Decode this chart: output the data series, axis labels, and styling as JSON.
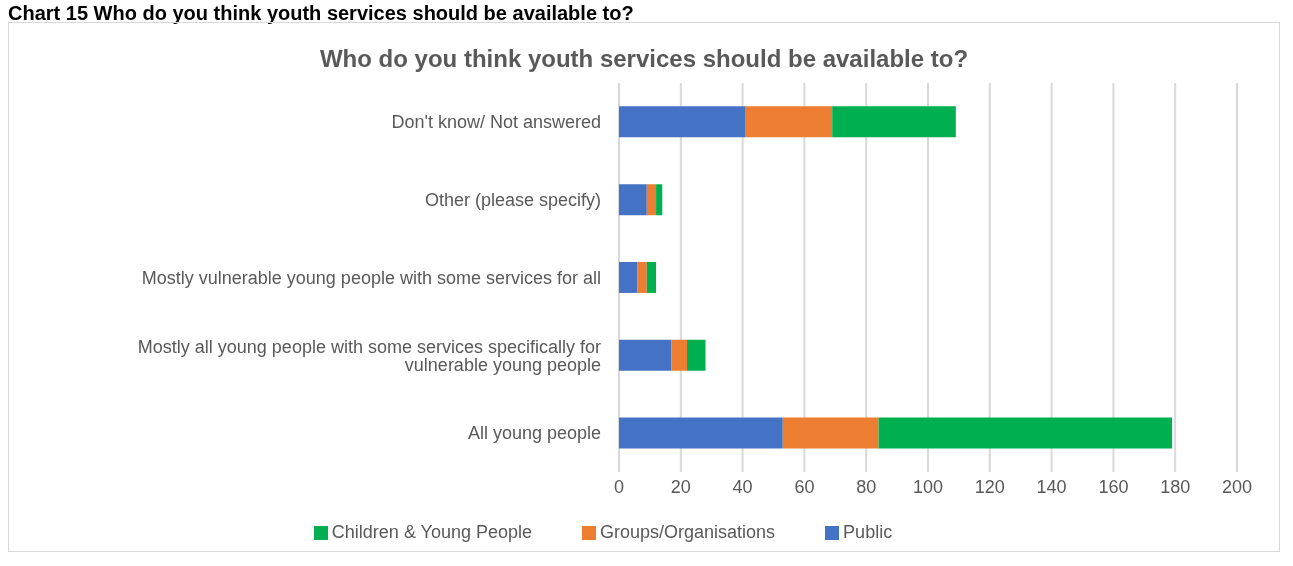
{
  "chart_data": {
    "type": "bar",
    "orientation": "horizontal",
    "stacked": true,
    "title": "Who do you think youth services should be available to?",
    "annotations": [
      "Chart 15 Who do you think youth services should be available to?"
    ],
    "categories": [
      "Don't know/ Not answered",
      "Other (please specify)",
      "Mostly vulnerable young people with some services for all",
      "Mostly all young people with some services specifically for vulnerable young people",
      "All young people"
    ],
    "series": [
      {
        "name": "Public",
        "color": "#4472c4",
        "values": [
          41,
          9,
          6,
          17,
          53
        ]
      },
      {
        "name": "Groups/Organisations",
        "color": "#ed7d31",
        "values": [
          28,
          3,
          3,
          5,
          31
        ]
      },
      {
        "name": "Children & Young People",
        "color": "#00b050",
        "values": [
          40,
          2,
          3,
          6,
          95
        ]
      }
    ],
    "xlim": [
      0,
      200
    ],
    "xticks": [
      0,
      20,
      40,
      60,
      80,
      100,
      120,
      140,
      160,
      180,
      200
    ],
    "grid": "x",
    "legend": "bottom"
  }
}
